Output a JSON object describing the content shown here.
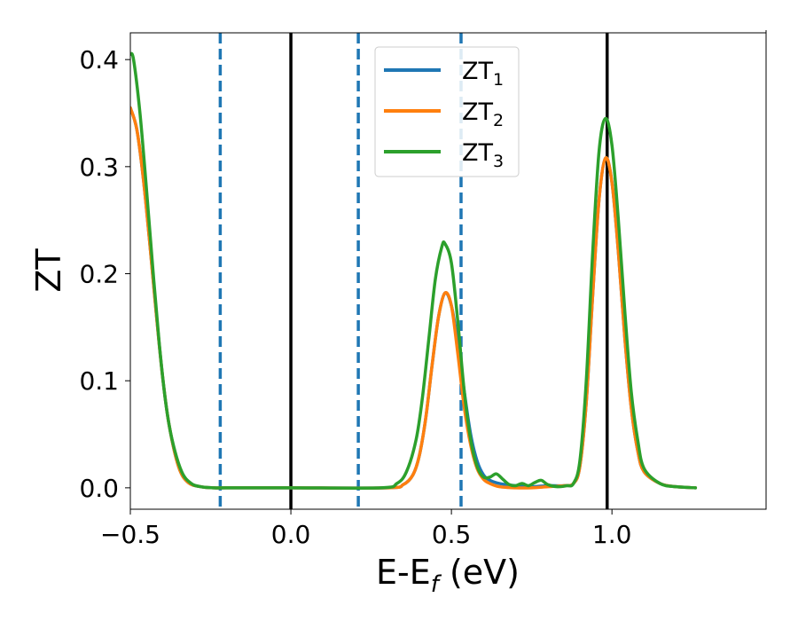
{
  "chart_data": {
    "type": "line",
    "xlabel": {
      "main": "E-E",
      "subscript": "f",
      "suffix": " (eV)"
    },
    "ylabel": "ZT",
    "xlim": [
      -0.5,
      1.48
    ],
    "ylim": [
      -0.02,
      0.425
    ],
    "xticks": [
      -0.5,
      0.0,
      0.5,
      1.0
    ],
    "xtick_labels": [
      "−0.5",
      "0.0",
      "0.5",
      "1.0"
    ],
    "yticks": [
      0.0,
      0.1,
      0.2,
      0.3,
      0.4
    ],
    "ytick_labels": [
      "0.0",
      "0.1",
      "0.2",
      "0.3",
      "0.4"
    ],
    "grid": false,
    "legend_position": "top-center",
    "vertical_lines": [
      {
        "x": -0.22,
        "style": "dashed",
        "color": "#1f77b4"
      },
      {
        "x": 0.0,
        "style": "solid",
        "color": "#000000"
      },
      {
        "x": 0.21,
        "style": "dashed",
        "color": "#1f77b4"
      },
      {
        "x": 0.53,
        "style": "dashed",
        "color": "#1f77b4"
      },
      {
        "x": 0.985,
        "style": "solid",
        "color": "#000000"
      }
    ],
    "series": [
      {
        "name": "ZT",
        "name_subscript": "1",
        "color": "#1f77b4",
        "x": [
          -0.5,
          -0.48,
          -0.46,
          -0.44,
          -0.42,
          -0.4,
          -0.38,
          -0.35,
          -0.32,
          -0.28,
          -0.24,
          -0.2,
          0.0,
          0.3,
          0.35,
          0.38,
          0.4,
          0.42,
          0.44,
          0.46,
          0.48,
          0.5,
          0.52,
          0.54,
          0.56,
          0.58,
          0.6,
          0.62,
          0.65,
          0.7,
          0.75,
          0.8,
          0.85,
          0.88,
          0.9,
          0.92,
          0.94,
          0.96,
          0.98,
          1.0,
          1.02,
          1.04,
          1.06,
          1.08,
          1.1,
          1.15,
          1.2,
          1.26
        ],
        "y": [
          0.355,
          0.335,
          0.29,
          0.23,
          0.165,
          0.105,
          0.06,
          0.02,
          0.005,
          0.001,
          0.0,
          0.0,
          0.0,
          0.0,
          0.003,
          0.012,
          0.03,
          0.065,
          0.115,
          0.16,
          0.182,
          0.17,
          0.135,
          0.09,
          0.05,
          0.025,
          0.012,
          0.007,
          0.004,
          0.002,
          0.001,
          0.002,
          0.002,
          0.004,
          0.02,
          0.08,
          0.18,
          0.27,
          0.308,
          0.285,
          0.22,
          0.14,
          0.075,
          0.035,
          0.015,
          0.004,
          0.001,
          0.0
        ]
      },
      {
        "name": "ZT",
        "name_subscript": "2",
        "color": "#ff7f0e",
        "x": [
          -0.5,
          -0.48,
          -0.46,
          -0.44,
          -0.42,
          -0.4,
          -0.38,
          -0.35,
          -0.32,
          -0.28,
          -0.24,
          -0.2,
          0.0,
          0.3,
          0.35,
          0.38,
          0.4,
          0.42,
          0.44,
          0.46,
          0.48,
          0.5,
          0.52,
          0.54,
          0.56,
          0.58,
          0.6,
          0.62,
          0.65,
          0.7,
          0.75,
          0.8,
          0.85,
          0.88,
          0.9,
          0.92,
          0.94,
          0.96,
          0.98,
          1.0,
          1.02,
          1.04,
          1.06,
          1.08,
          1.1,
          1.15,
          1.2,
          1.26
        ],
        "y": [
          0.355,
          0.335,
          0.29,
          0.23,
          0.165,
          0.105,
          0.06,
          0.02,
          0.005,
          0.001,
          0.0,
          0.0,
          0.0,
          0.0,
          0.003,
          0.012,
          0.03,
          0.065,
          0.115,
          0.16,
          0.182,
          0.17,
          0.125,
          0.075,
          0.04,
          0.018,
          0.008,
          0.004,
          0.001,
          0.0,
          0.0,
          0.001,
          0.002,
          0.004,
          0.02,
          0.08,
          0.18,
          0.27,
          0.308,
          0.285,
          0.22,
          0.14,
          0.075,
          0.035,
          0.015,
          0.004,
          0.001,
          0.0
        ]
      },
      {
        "name": "ZT",
        "name_subscript": "3",
        "color": "#2ca02c",
        "x": [
          -0.5,
          -0.49,
          -0.47,
          -0.45,
          -0.43,
          -0.41,
          -0.39,
          -0.37,
          -0.34,
          -0.31,
          -0.28,
          -0.24,
          -0.2,
          0.0,
          0.28,
          0.33,
          0.36,
          0.39,
          0.41,
          0.43,
          0.45,
          0.47,
          0.48,
          0.5,
          0.52,
          0.54,
          0.56,
          0.58,
          0.6,
          0.62,
          0.64,
          0.66,
          0.68,
          0.7,
          0.72,
          0.74,
          0.76,
          0.78,
          0.8,
          0.83,
          0.86,
          0.88,
          0.9,
          0.92,
          0.94,
          0.96,
          0.98,
          1.0,
          1.02,
          1.04,
          1.06,
          1.08,
          1.1,
          1.15,
          1.2,
          1.26
        ],
        "y": [
          0.405,
          0.4,
          0.35,
          0.28,
          0.205,
          0.135,
          0.08,
          0.045,
          0.015,
          0.004,
          0.001,
          0.0,
          0.0,
          0.0,
          0.0,
          0.004,
          0.015,
          0.045,
          0.085,
          0.14,
          0.195,
          0.225,
          0.228,
          0.21,
          0.155,
          0.09,
          0.045,
          0.02,
          0.01,
          0.01,
          0.013,
          0.008,
          0.003,
          0.002,
          0.004,
          0.002,
          0.005,
          0.007,
          0.003,
          0.001,
          0.002,
          0.004,
          0.025,
          0.1,
          0.22,
          0.315,
          0.345,
          0.32,
          0.25,
          0.165,
          0.09,
          0.045,
          0.018,
          0.004,
          0.001,
          0.0
        ]
      }
    ]
  }
}
